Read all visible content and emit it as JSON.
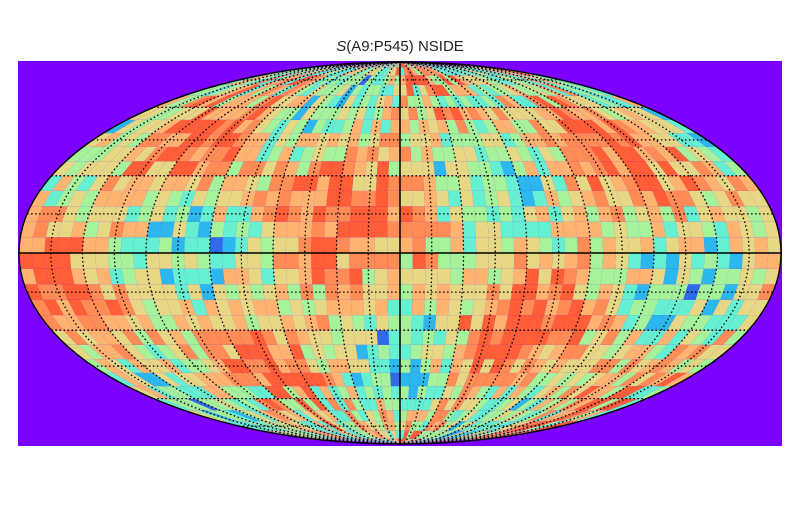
{
  "title": {
    "symbol": "S",
    "text": "(A9:P545) NSIDE"
  },
  "projection": "mollweide",
  "graticule": {
    "meridian_step_deg": 15,
    "parallel_step_deg": 15
  },
  "colors": {
    "background": "#7b00ff",
    "outline": "#000000",
    "graticule": "#000000",
    "palette": [
      "#2f6be8",
      "#2cb7ee",
      "#66f0d2",
      "#a5f29a",
      "#e6d784",
      "#ffb371",
      "#ff8c55",
      "#ff5e37"
    ]
  }
}
